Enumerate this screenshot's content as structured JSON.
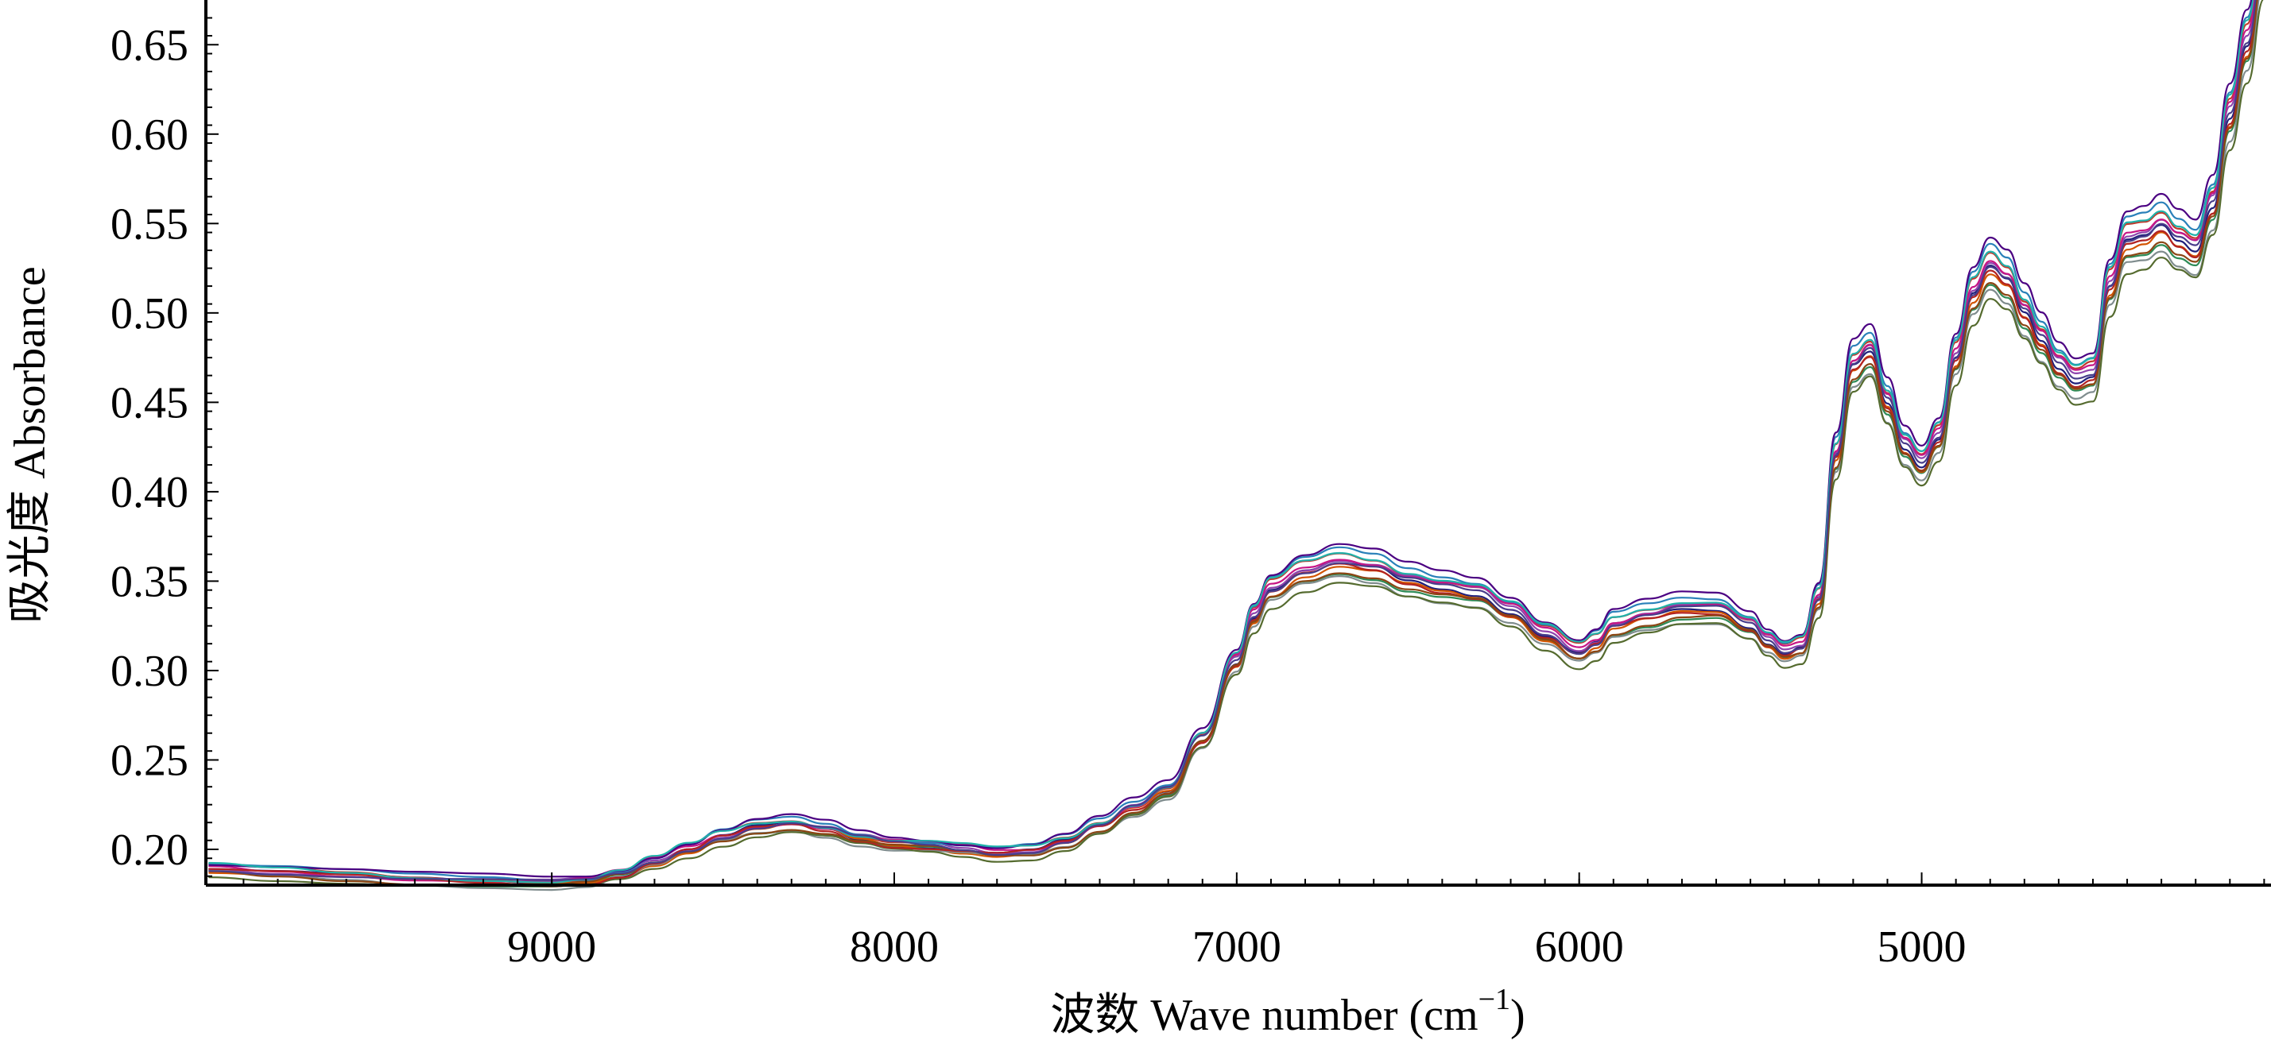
{
  "chart_data": {
    "type": "line",
    "xlabel": "波数 Wave number (cm",
    "xlabel_sup": "−1",
    "xlabel_close": ")",
    "ylabel": "吸光度 Absorbance",
    "x_reversed": true,
    "xlim": [
      10010,
      3980
    ],
    "ylim": [
      0.18,
      0.675
    ],
    "x_ticks": [
      {
        "value": 9000,
        "label": "9000"
      },
      {
        "value": 8000,
        "label": "8000"
      },
      {
        "value": 7000,
        "label": "7000"
      },
      {
        "value": 6000,
        "label": "6000"
      },
      {
        "value": 5000,
        "label": "5000"
      }
    ],
    "y_ticks": [
      {
        "value": 0.2,
        "label": "0.20"
      },
      {
        "value": 0.25,
        "label": "0.25"
      },
      {
        "value": 0.3,
        "label": "0.30"
      },
      {
        "value": 0.35,
        "label": "0.35"
      },
      {
        "value": 0.4,
        "label": "0.40"
      },
      {
        "value": 0.45,
        "label": "0.45"
      },
      {
        "value": 0.5,
        "label": "0.50"
      },
      {
        "value": 0.55,
        "label": "0.55"
      },
      {
        "value": 0.6,
        "label": "0.60"
      },
      {
        "value": 0.65,
        "label": "0.65"
      }
    ],
    "grid": false,
    "legend": "none",
    "x": [
      10000,
      9800,
      9600,
      9400,
      9200,
      9000,
      8900,
      8800,
      8700,
      8600,
      8500,
      8400,
      8300,
      8200,
      8100,
      8000,
      7900,
      7800,
      7700,
      7600,
      7500,
      7400,
      7300,
      7200,
      7100,
      7000,
      6950,
      6900,
      6800,
      6700,
      6600,
      6500,
      6400,
      6300,
      6200,
      6100,
      6000,
      5950,
      5900,
      5800,
      5700,
      5600,
      5500,
      5450,
      5400,
      5350,
      5300,
      5250,
      5200,
      5150,
      5100,
      5050,
      5000,
      4950,
      4900,
      4850,
      4800,
      4750,
      4700,
      4650,
      4600,
      4550,
      4500,
      4450,
      4400,
      4350,
      4300,
      4250,
      4200,
      4150,
      4100,
      4050,
      4000
    ],
    "base_values": [
      0.189,
      0.187,
      0.185,
      0.183,
      0.182,
      0.181,
      0.182,
      0.186,
      0.193,
      0.2,
      0.207,
      0.212,
      0.214,
      0.211,
      0.206,
      0.203,
      0.202,
      0.2,
      0.198,
      0.199,
      0.204,
      0.213,
      0.223,
      0.233,
      0.262,
      0.305,
      0.33,
      0.345,
      0.355,
      0.36,
      0.357,
      0.35,
      0.346,
      0.343,
      0.333,
      0.32,
      0.31,
      0.315,
      0.325,
      0.33,
      0.334,
      0.334,
      0.325,
      0.316,
      0.31,
      0.313,
      0.34,
      0.42,
      0.47,
      0.478,
      0.45,
      0.425,
      0.415,
      0.43,
      0.475,
      0.51,
      0.525,
      0.518,
      0.5,
      0.485,
      0.47,
      0.462,
      0.465,
      0.515,
      0.54,
      0.542,
      0.548,
      0.54,
      0.535,
      0.56,
      0.61,
      0.65,
      0.7
    ],
    "series": [
      {
        "color": "#1f1f7a",
        "offset": 0.0
      },
      {
        "color": "#c0392b",
        "offset": 0.006
      },
      {
        "color": "#2e8b57",
        "offset": -0.006
      },
      {
        "color": "#8e44ad",
        "offset": 0.003
      },
      {
        "color": "#d35400",
        "offset": -0.003
      },
      {
        "color": "#2980b9",
        "offset": 0.009
      },
      {
        "color": "#7f8c8d",
        "offset": -0.009
      },
      {
        "color": "#c71585",
        "offset": 0.004
      },
      {
        "color": "#556b2f",
        "offset": -0.012
      },
      {
        "color": "#4b0082",
        "offset": 0.012
      },
      {
        "color": "#b22222",
        "offset": -0.002
      },
      {
        "color": "#20b2aa",
        "offset": 0.007
      },
      {
        "color": "#8b4513",
        "offset": -0.005
      },
      {
        "color": "#483d8b",
        "offset": 0.001
      }
    ]
  }
}
